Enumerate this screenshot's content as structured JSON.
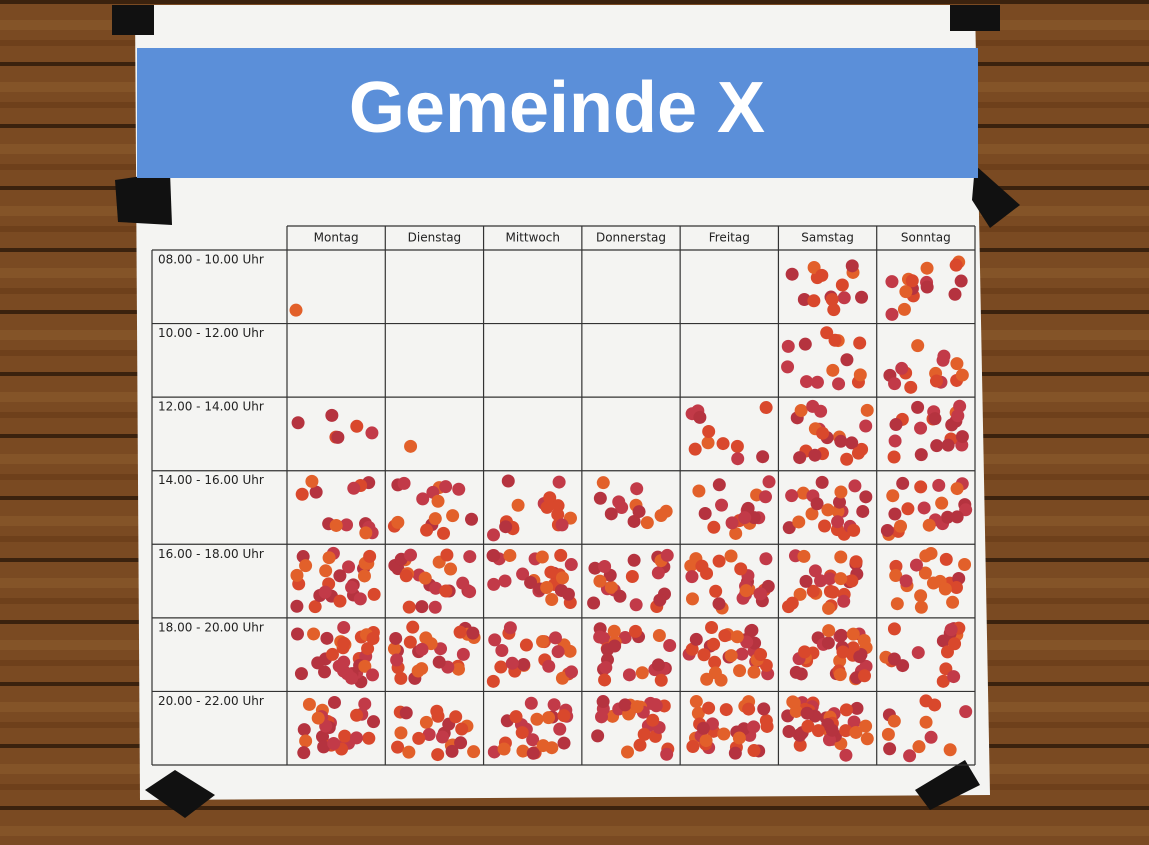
{
  "header": {
    "title": "Gemeinde X"
  },
  "table": {
    "columns": [
      "Montag",
      "Dienstag",
      "Mittwoch",
      "Donnerstag",
      "Freitag",
      "Samstag",
      "Sonntag"
    ],
    "rows": [
      {
        "label": "08.00 - 10.00 Uhr",
        "dots": [
          1,
          0,
          0,
          0,
          0,
          14,
          15
        ]
      },
      {
        "label": "10.00 - 12.00 Uhr",
        "dots": [
          0,
          0,
          0,
          0,
          0,
          14,
          14
        ]
      },
      {
        "label": "12.00 - 14.00 Uhr",
        "dots": [
          6,
          1,
          0,
          0,
          11,
          20,
          20
        ]
      },
      {
        "label": "14.00 - 16.00 Uhr",
        "dots": [
          13,
          16,
          16,
          12,
          17,
          22,
          21
        ]
      },
      {
        "label": "16.00 - 18.00 Uhr",
        "dots": [
          26,
          23,
          25,
          20,
          25,
          25,
          20
        ]
      },
      {
        "label": "18.00 - 20.00 Uhr",
        "dots": [
          32,
          26,
          22,
          24,
          30,
          32,
          18
        ]
      },
      {
        "label": "20.00 - 22.00 Uhr",
        "dots": [
          26,
          22,
          24,
          26,
          30,
          38,
          12
        ]
      }
    ]
  }
}
